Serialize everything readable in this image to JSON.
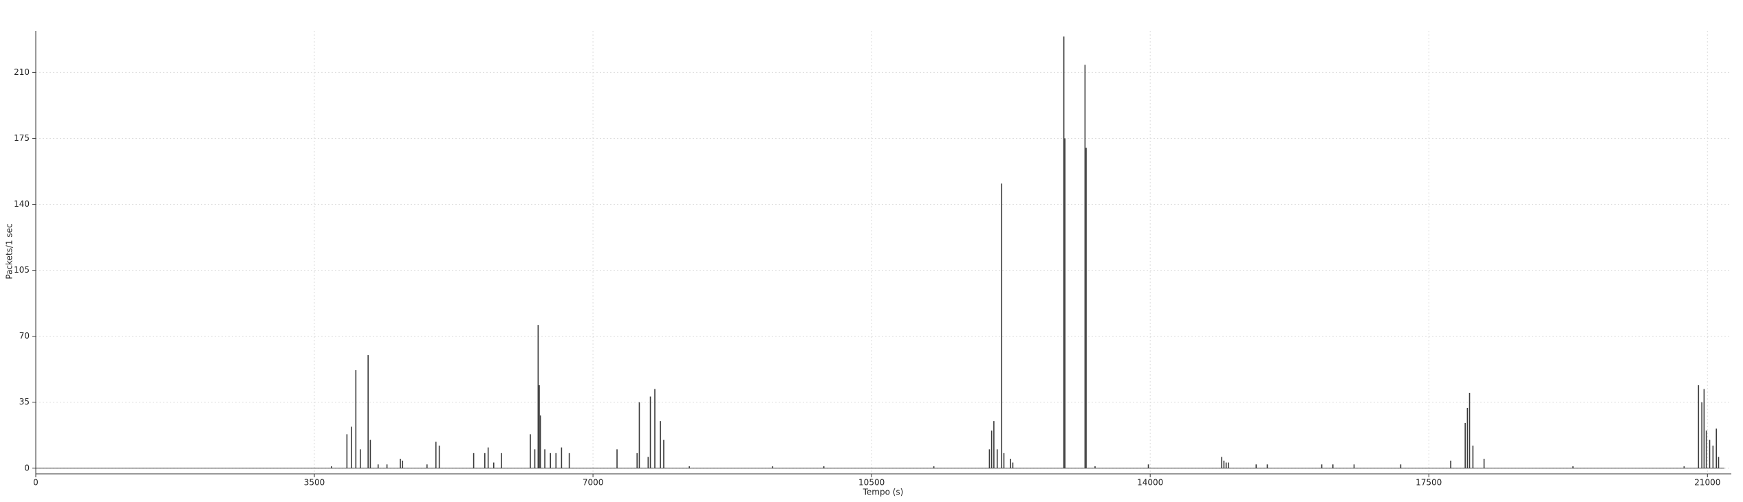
{
  "chart_data": {
    "type": "bar",
    "x_label": "Tempo (s)",
    "y_label": "Packets/1 sec",
    "x": [
      3714,
      3909,
      3965,
      4021,
      4077,
      4175,
      4203,
      4301,
      4412,
      4580,
      4608,
      4915,
      5027,
      5069,
      5501,
      5641,
      5683,
      5753,
      5850,
      6213,
      6269,
      6311,
      6325,
      6339,
      6395,
      6465,
      6535,
      6605,
      6702,
      7302,
      7554,
      7582,
      7693,
      7721,
      7777,
      7847,
      7889,
      8210,
      9257,
      9900,
      11282,
      11980,
      12008,
      12036,
      12078,
      12134,
      12162,
      12246,
      12274,
      12915,
      12929,
      13181,
      13195,
      13307,
      13977,
      14898,
      14926,
      14954,
      14982,
      15331,
      15471,
      16155,
      16295,
      16561,
      17147,
      17775,
      17957,
      17985,
      18012,
      18054,
      18194,
      19311,
      20707,
      20888,
      20930,
      20958,
      20986,
      21028,
      21070,
      21112,
      21140
    ],
    "values": [
      1,
      18,
      22,
      52,
      10,
      60,
      15,
      2,
      2,
      5,
      4,
      2,
      14,
      12,
      8,
      8,
      11,
      3,
      8,
      18,
      10,
      76,
      44,
      28,
      10,
      8,
      8,
      11,
      8,
      10,
      8,
      35,
      6,
      38,
      42,
      25,
      15,
      1,
      1,
      1,
      1,
      10,
      20,
      25,
      10,
      151,
      8,
      5,
      3,
      229,
      175,
      214,
      170,
      1,
      2,
      6,
      4,
      3,
      3,
      2,
      2,
      2,
      2,
      2,
      2,
      4,
      24,
      32,
      40,
      12,
      5,
      1,
      1,
      44,
      35,
      42,
      20,
      15,
      12,
      21,
      6
    ],
    "color": "#3a3a3a",
    "xlim": [
      0,
      21300
    ],
    "ylim": [
      -3,
      232
    ],
    "xticks": [
      0,
      3500,
      7000,
      10500,
      14000,
      17500,
      21000
    ],
    "yticks": [
      0,
      35,
      70,
      105,
      140,
      175,
      210
    ],
    "grid": true
  }
}
